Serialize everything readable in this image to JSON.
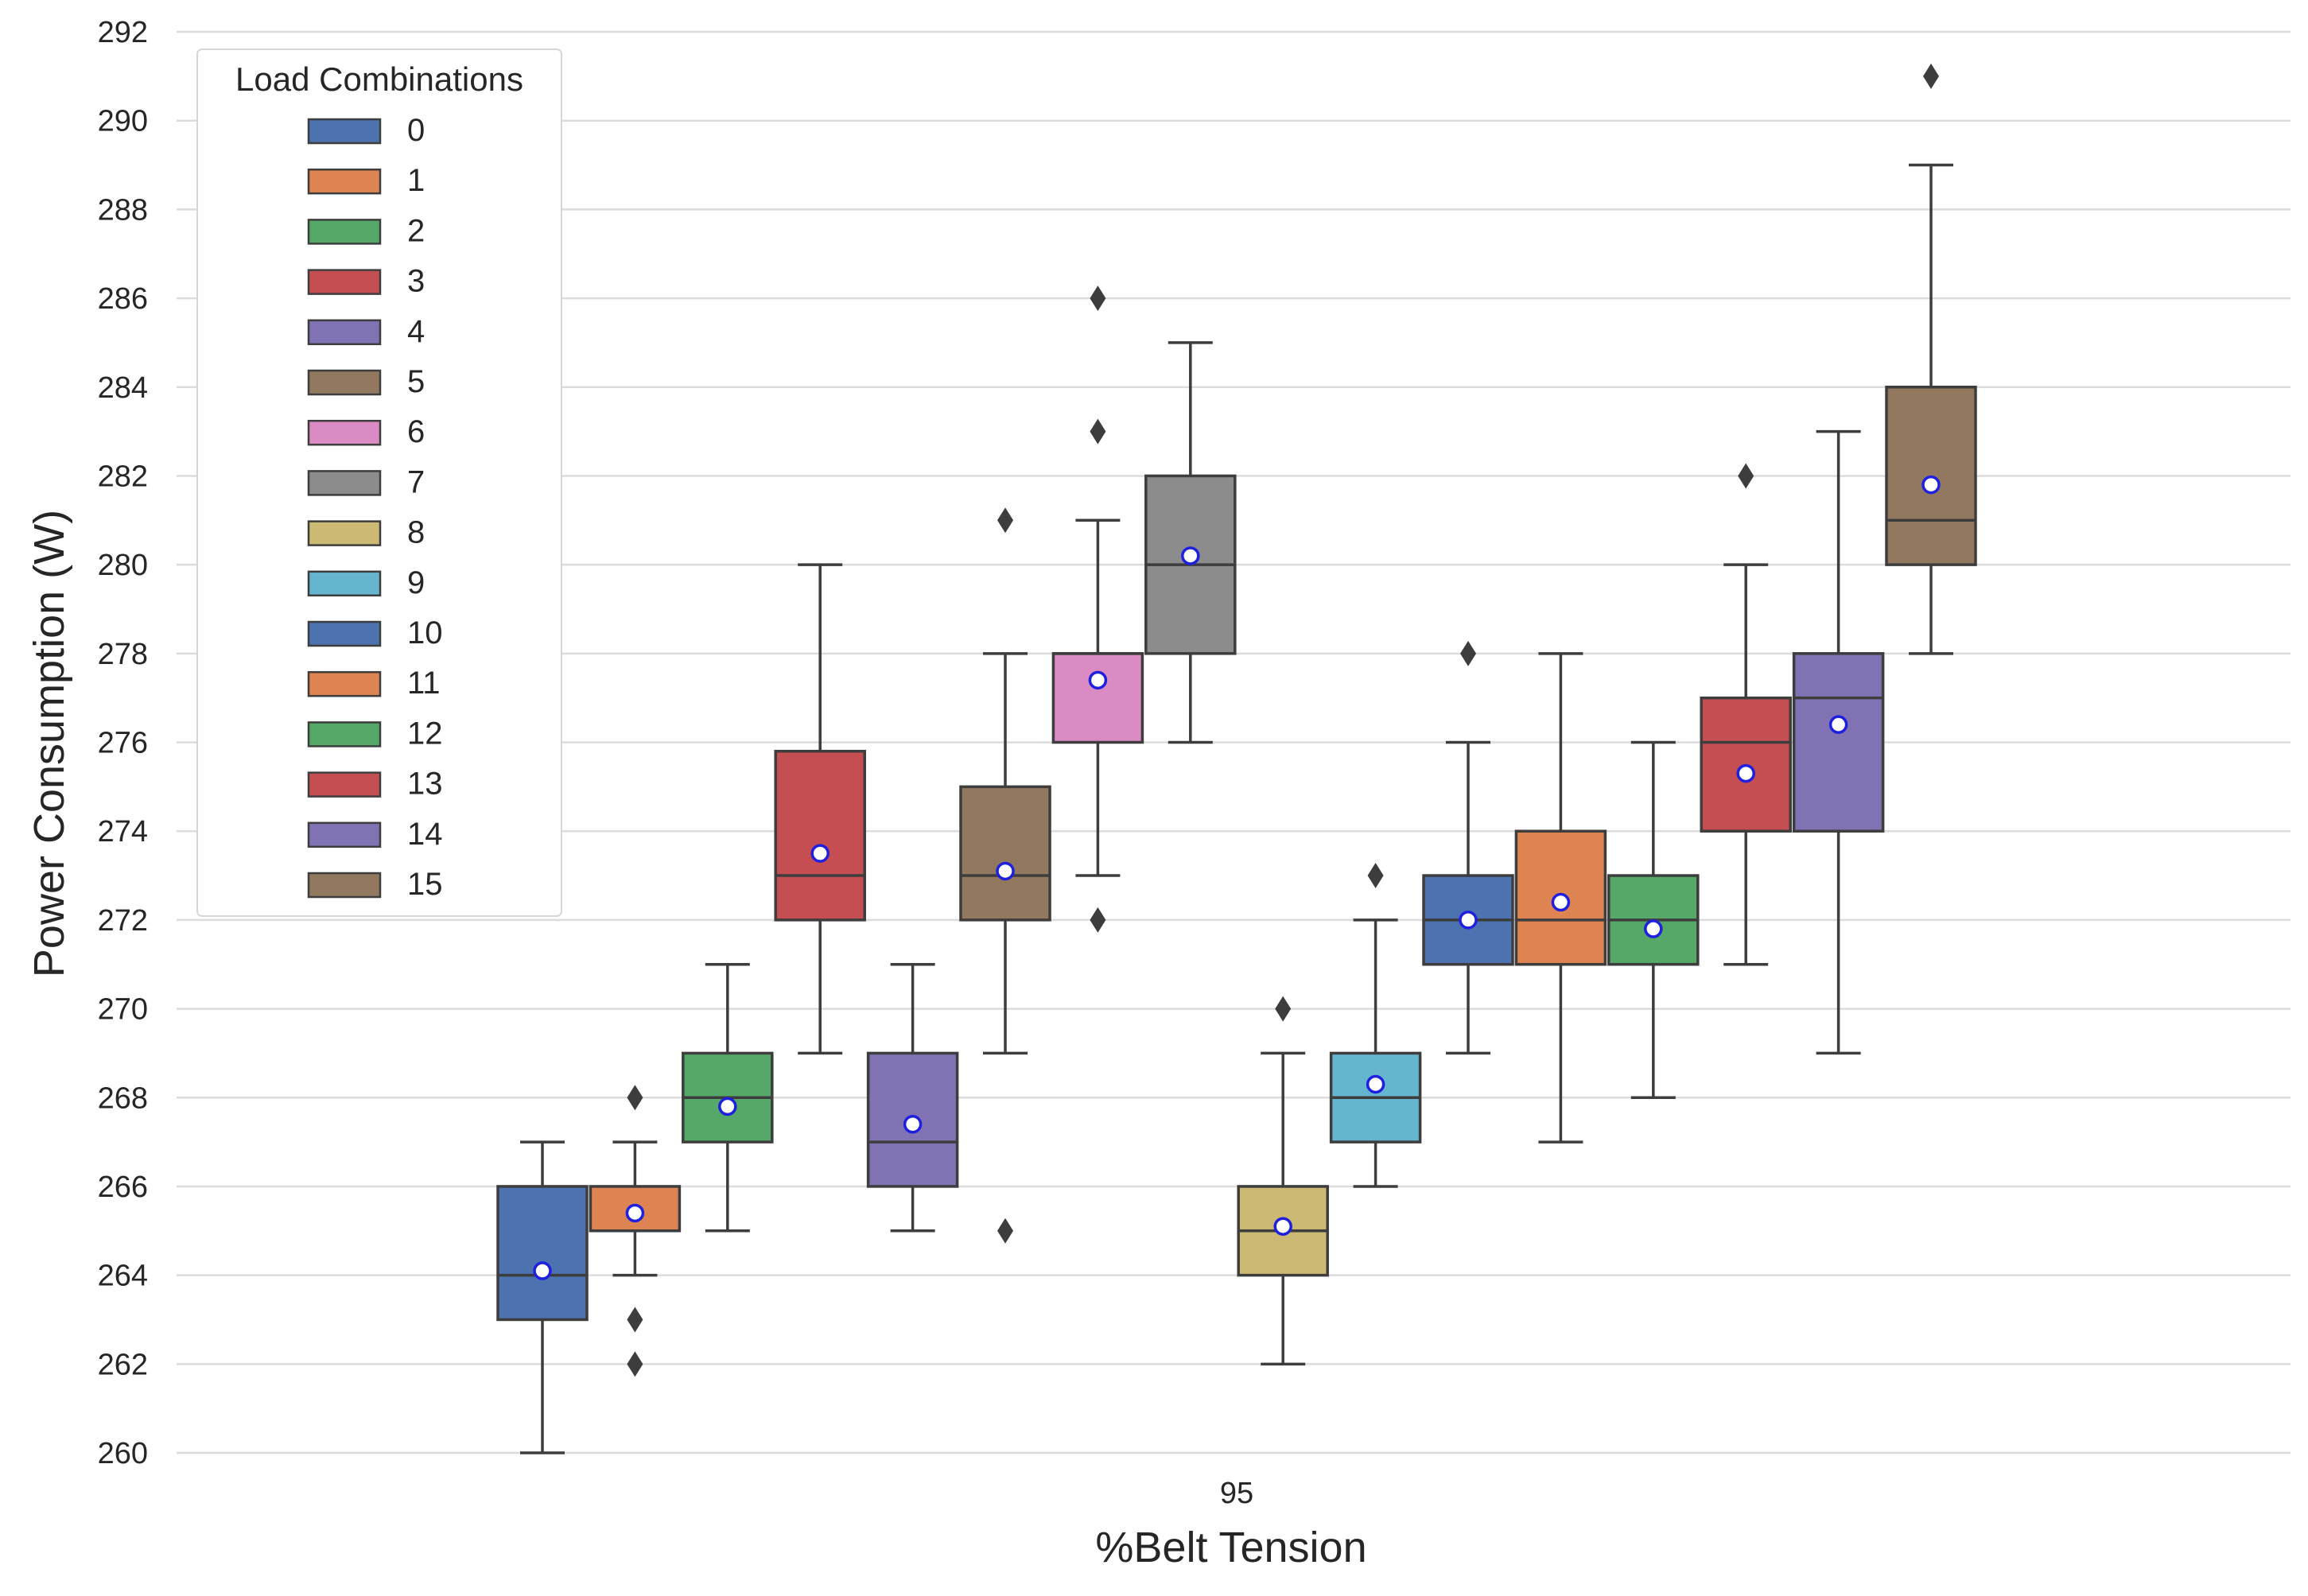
{
  "chart_data": {
    "type": "box",
    "xlabel": "%Belt Tension",
    "ylabel": "Power Consumption (W)",
    "categories": [
      "95"
    ],
    "ylim": [
      260,
      292
    ],
    "yticks": [
      260,
      262,
      264,
      266,
      268,
      270,
      272,
      274,
      276,
      278,
      280,
      282,
      284,
      286,
      288,
      290,
      292
    ],
    "grid": "horizontal",
    "legend": {
      "title": "Load Combinations",
      "placement": "top-left",
      "entries": [
        "0",
        "1",
        "2",
        "3",
        "4",
        "5",
        "6",
        "7",
        "8",
        "9",
        "10",
        "11",
        "12",
        "13",
        "14",
        "15"
      ]
    },
    "mean_marker": "white circle with blue outline",
    "series": [
      {
        "name": "0",
        "color": "#4c72b0",
        "whisker_low": 260,
        "q1": 263,
        "median": 264,
        "q3": 266,
        "whisker_high": 267,
        "mean": 264.1,
        "outliers": []
      },
      {
        "name": "1",
        "color": "#dd8452",
        "whisker_low": 264,
        "q1": 265,
        "median": 265,
        "q3": 266,
        "whisker_high": 267,
        "mean": 265.4,
        "outliers": [
          268,
          263,
          262
        ]
      },
      {
        "name": "2",
        "color": "#55a868",
        "whisker_low": 265,
        "q1": 267,
        "median": 268,
        "q3": 269,
        "whisker_high": 271,
        "mean": 267.8,
        "outliers": []
      },
      {
        "name": "3",
        "color": "#c44e52",
        "whisker_low": 269,
        "q1": 272,
        "median": 273,
        "q3": 275.8,
        "whisker_high": 280,
        "mean": 273.5,
        "outliers": []
      },
      {
        "name": "4",
        "color": "#8172b3",
        "whisker_low": 265,
        "q1": 266,
        "median": 267,
        "q3": 269,
        "whisker_high": 271,
        "mean": 267.4,
        "outliers": []
      },
      {
        "name": "5",
        "color": "#937860",
        "whisker_low": 269,
        "q1": 272,
        "median": 273,
        "q3": 275,
        "whisker_high": 278,
        "mean": 273.1,
        "outliers": [
          281,
          265
        ]
      },
      {
        "name": "6",
        "color": "#da8bc3",
        "whisker_low": 273,
        "q1": 276,
        "median": 278,
        "q3": 278,
        "whisker_high": 281,
        "mean": 277.4,
        "outliers": [
          286,
          283,
          272
        ]
      },
      {
        "name": "7",
        "color": "#8c8c8c",
        "whisker_low": 276,
        "q1": 278,
        "median": 280,
        "q3": 282,
        "whisker_high": 285,
        "mean": 280.2,
        "outliers": []
      },
      {
        "name": "8",
        "color": "#ccb974",
        "whisker_low": 262,
        "q1": 264,
        "median": 265,
        "q3": 266,
        "whisker_high": 269,
        "mean": 265.1,
        "outliers": [
          270
        ]
      },
      {
        "name": "9",
        "color": "#64b5cd",
        "whisker_low": 266,
        "q1": 267,
        "median": 268,
        "q3": 269,
        "whisker_high": 272,
        "mean": 268.3,
        "outliers": [
          273
        ]
      },
      {
        "name": "10",
        "color": "#4c72b0",
        "whisker_low": 269,
        "q1": 271,
        "median": 272,
        "q3": 273,
        "whisker_high": 276,
        "mean": 272.0,
        "outliers": [
          278
        ]
      },
      {
        "name": "11",
        "color": "#dd8452",
        "whisker_low": 267,
        "q1": 271,
        "median": 272,
        "q3": 274,
        "whisker_high": 278,
        "mean": 272.4,
        "outliers": []
      },
      {
        "name": "12",
        "color": "#55a868",
        "whisker_low": 268,
        "q1": 271,
        "median": 272,
        "q3": 273,
        "whisker_high": 276,
        "mean": 271.8,
        "outliers": []
      },
      {
        "name": "13",
        "color": "#c44e52",
        "whisker_low": 271,
        "q1": 274,
        "median": 276,
        "q3": 277,
        "whisker_high": 280,
        "mean": 275.3,
        "outliers": [
          282
        ]
      },
      {
        "name": "14",
        "color": "#8172b3",
        "whisker_low": 269,
        "q1": 274,
        "median": 277,
        "q3": 278,
        "whisker_high": 283,
        "mean": 276.4,
        "outliers": []
      },
      {
        "name": "15",
        "color": "#937860",
        "whisker_low": 278,
        "q1": 280,
        "median": 281,
        "q3": 284,
        "whisker_high": 289,
        "mean": 281.8,
        "outliers": [
          291
        ]
      }
    ]
  }
}
